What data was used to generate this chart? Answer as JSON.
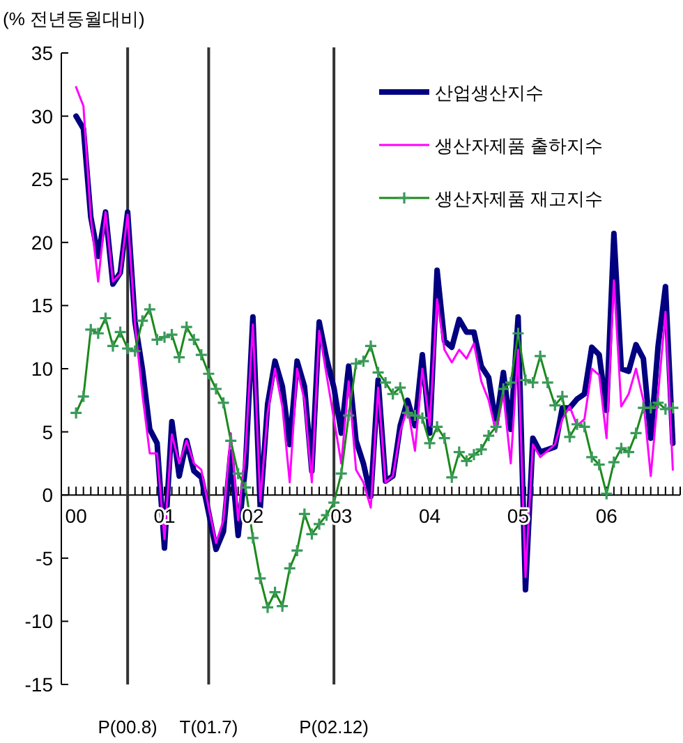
{
  "chart_data": {
    "type": "line",
    "ylabel": "(% 전년동월대비)",
    "x": [
      "2000-01",
      "2000-02",
      "2000-03",
      "2000-04",
      "2000-05",
      "2000-06",
      "2000-07",
      "2000-08",
      "2000-09",
      "2000-10",
      "2000-11",
      "2000-12",
      "2001-01",
      "2001-02",
      "2001-03",
      "2001-04",
      "2001-05",
      "2001-06",
      "2001-07",
      "2001-08",
      "2001-09",
      "2001-10",
      "2001-11",
      "2001-12",
      "2002-01",
      "2002-02",
      "2002-03",
      "2002-04",
      "2002-05",
      "2002-06",
      "2002-07",
      "2002-08",
      "2002-09",
      "2002-10",
      "2002-11",
      "2002-12",
      "2003-01",
      "2003-02",
      "2003-03",
      "2003-04",
      "2003-05",
      "2003-06",
      "2003-07",
      "2003-08",
      "2003-09",
      "2003-10",
      "2003-11",
      "2003-12",
      "2004-01",
      "2004-02",
      "2004-03",
      "2004-04",
      "2004-05",
      "2004-06",
      "2004-07",
      "2004-08",
      "2004-09",
      "2004-10",
      "2004-11",
      "2004-12",
      "2005-01",
      "2005-02",
      "2005-03",
      "2005-04",
      "2005-05",
      "2005-06",
      "2005-07",
      "2005-08",
      "2005-09",
      "2005-10",
      "2005-11",
      "2005-12",
      "2006-01",
      "2006-02",
      "2006-03",
      "2006-04",
      "2006-05",
      "2006-06",
      "2006-07",
      "2006-08",
      "2006-09",
      "2006-10"
    ],
    "series": [
      {
        "name": "산업생산지수",
        "color": "#000080",
        "values": [
          30.0,
          29.0,
          22.0,
          18.9,
          22.4,
          16.7,
          17.6,
          22.4,
          13.7,
          10.0,
          5.2,
          4.1,
          -4.2,
          5.8,
          1.5,
          4.3,
          1.9,
          1.4,
          -1.4,
          -4.3,
          -2.9,
          3.4,
          -3.2,
          2.3,
          14.1,
          -1.0,
          7.2,
          10.6,
          8.6,
          4.0,
          10.6,
          8.6,
          1.9,
          13.7,
          10.8,
          8.5,
          4.9,
          10.2,
          4.3,
          2.5,
          -0.1,
          9.1,
          1.1,
          1.5,
          5.5,
          7.5,
          5.5,
          11.1,
          4.9,
          17.8,
          12.2,
          11.7,
          13.9,
          12.9,
          12.9,
          10.2,
          9.3,
          5.6,
          9.7,
          5.2,
          14.1,
          -7.5,
          4.5,
          3.4,
          3.6,
          3.8,
          6.9,
          6.9,
          7.6,
          8.0,
          11.7,
          11.1,
          6.7,
          20.7,
          10.0,
          9.8,
          11.9,
          10.8,
          4.5,
          11.8,
          16.5,
          4.1
        ]
      },
      {
        "name": "생산자제품 출하지수",
        "color": "#ff00ff",
        "values": [
          32.3,
          30.8,
          22.0,
          16.9,
          22.4,
          16.9,
          17.5,
          22.2,
          13.5,
          8.0,
          3.3,
          3.3,
          -3.5,
          4.8,
          2.5,
          4.3,
          2.5,
          2.0,
          -1.0,
          -3.8,
          -2.0,
          4.9,
          -2.0,
          3.5,
          13.5,
          -0.5,
          6.5,
          10.0,
          7.0,
          1.0,
          10.0,
          7.5,
          1.0,
          13.0,
          9.5,
          6.0,
          2.5,
          9.0,
          2.0,
          1.0,
          -1.0,
          8.5,
          1.0,
          1.5,
          5.0,
          7.0,
          3.5,
          10.0,
          5.5,
          15.5,
          11.5,
          10.5,
          11.5,
          10.8,
          12.0,
          9.0,
          7.5,
          5.0,
          8.0,
          2.5,
          11.5,
          -6.5,
          4.0,
          3.0,
          3.5,
          4.0,
          6.0,
          7.0,
          5.5,
          6.0,
          10.0,
          9.5,
          4.5,
          17.0,
          7.0,
          8.0,
          10.0,
          7.5,
          1.5,
          8.0,
          14.5,
          2.0
        ]
      },
      {
        "name": "생산자제품 재고지수",
        "color": "#1a8a1a",
        "marker": "cross",
        "values": [
          6.5,
          7.8,
          13.1,
          12.8,
          14.0,
          11.8,
          12.9,
          11.6,
          11.4,
          13.8,
          14.7,
          12.3,
          12.5,
          12.7,
          10.9,
          13.3,
          12.3,
          11.1,
          9.6,
          8.4,
          7.3,
          4.3,
          1.7,
          0.6,
          -3.4,
          -6.6,
          -8.9,
          -7.7,
          -8.8,
          -5.8,
          -4.4,
          -1.5,
          -3.1,
          -2.3,
          -1.6,
          -0.6,
          1.7,
          6.3,
          10.4,
          10.6,
          11.8,
          9.7,
          8.9,
          8.0,
          8.5,
          6.5,
          6.3,
          6.1,
          4.1,
          5.4,
          4.5,
          1.4,
          3.4,
          2.7,
          3.2,
          3.6,
          4.7,
          5.4,
          8.4,
          8.9,
          12.8,
          9.1,
          8.9,
          11.0,
          8.9,
          7.1,
          7.8,
          4.6,
          5.6,
          5.4,
          3.0,
          2.4,
          0.1,
          2.6,
          3.7,
          3.4,
          4.9,
          6.9,
          6.9,
          7.3,
          6.8,
          6.9
        ]
      }
    ],
    "xlim": [
      "1999-11",
      "2006-11"
    ],
    "xticks": [
      {
        "value": "2000-01",
        "label": "00"
      },
      {
        "value": "2001-01",
        "label": "01"
      },
      {
        "value": "2002-01",
        "label": "02"
      },
      {
        "value": "2003-01",
        "label": "03"
      },
      {
        "value": "2004-01",
        "label": "04"
      },
      {
        "value": "2005-01",
        "label": "05"
      },
      {
        "value": "2006-01",
        "label": "06"
      }
    ],
    "ylim": [
      -15,
      35
    ],
    "yticks": [
      -15,
      -10,
      -5,
      0,
      5,
      10,
      15,
      20,
      25,
      30,
      35
    ],
    "ref_lines": [
      {
        "axis": "x",
        "value": "2000-08",
        "label": "P(00.8)",
        "color": "#333333"
      },
      {
        "axis": "x",
        "value": "2001-07",
        "label": "T(01.7)",
        "color": "#333333"
      },
      {
        "axis": "x",
        "value": "2002-12",
        "label": "P(02.12)",
        "color": "#333333"
      }
    ],
    "grid": false,
    "legend": "top right",
    "line_style": "solid"
  }
}
